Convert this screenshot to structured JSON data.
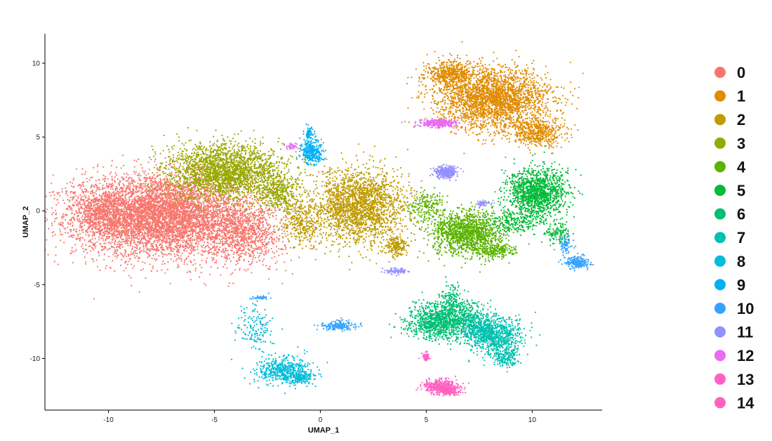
{
  "chart_data": {
    "type": "scatter",
    "title": "",
    "xlabel": "UMAP_1",
    "ylabel": "UMAP_2",
    "xlim": [
      -13,
      13.3
    ],
    "ylim": [
      -13.5,
      12
    ],
    "xticks": [
      -10,
      -5,
      0,
      5,
      10
    ],
    "yticks": [
      10,
      5,
      0,
      -5,
      -10
    ],
    "xtick_labels": [
      "-10",
      "-5",
      "0",
      "5",
      "10"
    ],
    "ytick_labels": [
      "10",
      "5",
      "0",
      "-5",
      "-10"
    ],
    "grid": false,
    "legend_position": "right",
    "series": [
      {
        "name": "0",
        "color": "#F8766D",
        "blobs": [
          [
            -7.5,
            -0.3,
            4.1,
            2.7,
            6000
          ],
          [
            -10.2,
            -0.2,
            1.5,
            1.7,
            600
          ],
          [
            -3.5,
            -1.5,
            1.8,
            2.2,
            900
          ]
        ]
      },
      {
        "name": "1",
        "color": "#E08B00",
        "blobs": [
          [
            8.2,
            7.6,
            2.6,
            2.0,
            2600
          ],
          [
            6.2,
            9.3,
            1.2,
            0.9,
            500
          ],
          [
            10.2,
            5.3,
            1.3,
            0.9,
            500
          ]
        ]
      },
      {
        "name": "2",
        "color": "#C09B00",
        "blobs": [
          [
            1.8,
            0.3,
            2.2,
            2.5,
            2200
          ],
          [
            -0.8,
            -1.0,
            1.0,
            1.5,
            300
          ],
          [
            3.6,
            -2.3,
            0.5,
            0.7,
            200
          ]
        ]
      },
      {
        "name": "3",
        "color": "#99A800",
        "blobs": [
          [
            -4.5,
            2.7,
            2.7,
            1.8,
            2300
          ],
          [
            -2.0,
            1.2,
            1.0,
            1.2,
            400
          ]
        ]
      },
      {
        "name": "4",
        "color": "#5BB300",
        "blobs": [
          [
            6.9,
            -1.5,
            1.7,
            1.5,
            1400
          ],
          [
            5.0,
            0.3,
            0.8,
            1.0,
            200
          ],
          [
            8.2,
            -2.7,
            1.0,
            0.5,
            200
          ]
        ]
      },
      {
        "name": "5",
        "color": "#00BA38",
        "blobs": [
          [
            10.2,
            1.2,
            1.4,
            1.7,
            1300
          ],
          [
            9.2,
            -0.8,
            1.2,
            0.7,
            200
          ],
          [
            11.2,
            -1.5,
            0.5,
            0.7,
            120
          ]
        ]
      },
      {
        "name": "6",
        "color": "#00BF74",
        "blobs": [
          [
            5.5,
            -7.5,
            1.5,
            1.2,
            900
          ],
          [
            6.7,
            -7.2,
            1.2,
            1.2,
            400
          ],
          [
            6.2,
            -6.0,
            0.4,
            1.0,
            120
          ]
        ]
      },
      {
        "name": "7",
        "color": "#00C0AF",
        "blobs": [
          [
            8.3,
            -8.5,
            1.3,
            1.3,
            700
          ],
          [
            7.5,
            -8.0,
            1.0,
            1.0,
            300
          ],
          [
            8.8,
            -10.0,
            0.6,
            0.6,
            150
          ]
        ]
      },
      {
        "name": "8",
        "color": "#00BCD8",
        "blobs": [
          [
            -1.8,
            -10.8,
            1.3,
            0.9,
            500
          ],
          [
            -3.0,
            -8.0,
            0.8,
            1.5,
            150
          ],
          [
            -1.0,
            -11.3,
            0.7,
            0.4,
            150
          ]
        ]
      },
      {
        "name": "9",
        "color": "#00B0F6",
        "blobs": [
          [
            -0.4,
            4.0,
            0.5,
            0.9,
            320
          ],
          [
            -0.5,
            5.3,
            0.2,
            0.6,
            70
          ]
        ]
      },
      {
        "name": "10",
        "color": "#35A2FF",
        "blobs": [
          [
            12.1,
            -3.5,
            0.5,
            0.4,
            200
          ],
          [
            11.6,
            -2.3,
            0.3,
            0.7,
            70
          ],
          [
            0.9,
            -7.8,
            0.8,
            0.3,
            180
          ],
          [
            -2.8,
            -5.9,
            0.4,
            0.15,
            40
          ]
        ]
      },
      {
        "name": "11",
        "color": "#9590FF",
        "blobs": [
          [
            5.9,
            2.6,
            0.5,
            0.4,
            300
          ],
          [
            3.6,
            -4.1,
            0.6,
            0.2,
            80
          ],
          [
            7.7,
            0.5,
            0.4,
            0.2,
            50
          ]
        ]
      },
      {
        "name": "12",
        "color": "#E76BF3",
        "blobs": [
          [
            5.6,
            5.9,
            0.9,
            0.25,
            300
          ],
          [
            -1.3,
            4.4,
            0.3,
            0.2,
            40
          ]
        ]
      },
      {
        "name": "13",
        "color": "#FF61C3",
        "blobs": [
          [
            5.7,
            -11.9,
            0.8,
            0.45,
            400
          ],
          [
            5.0,
            -9.9,
            0.2,
            0.3,
            60
          ]
        ]
      },
      {
        "name": "14",
        "color": "#FF62BC",
        "blobs": [
          [
            6.0,
            -12.2,
            0.6,
            0.3,
            150
          ]
        ]
      }
    ]
  }
}
